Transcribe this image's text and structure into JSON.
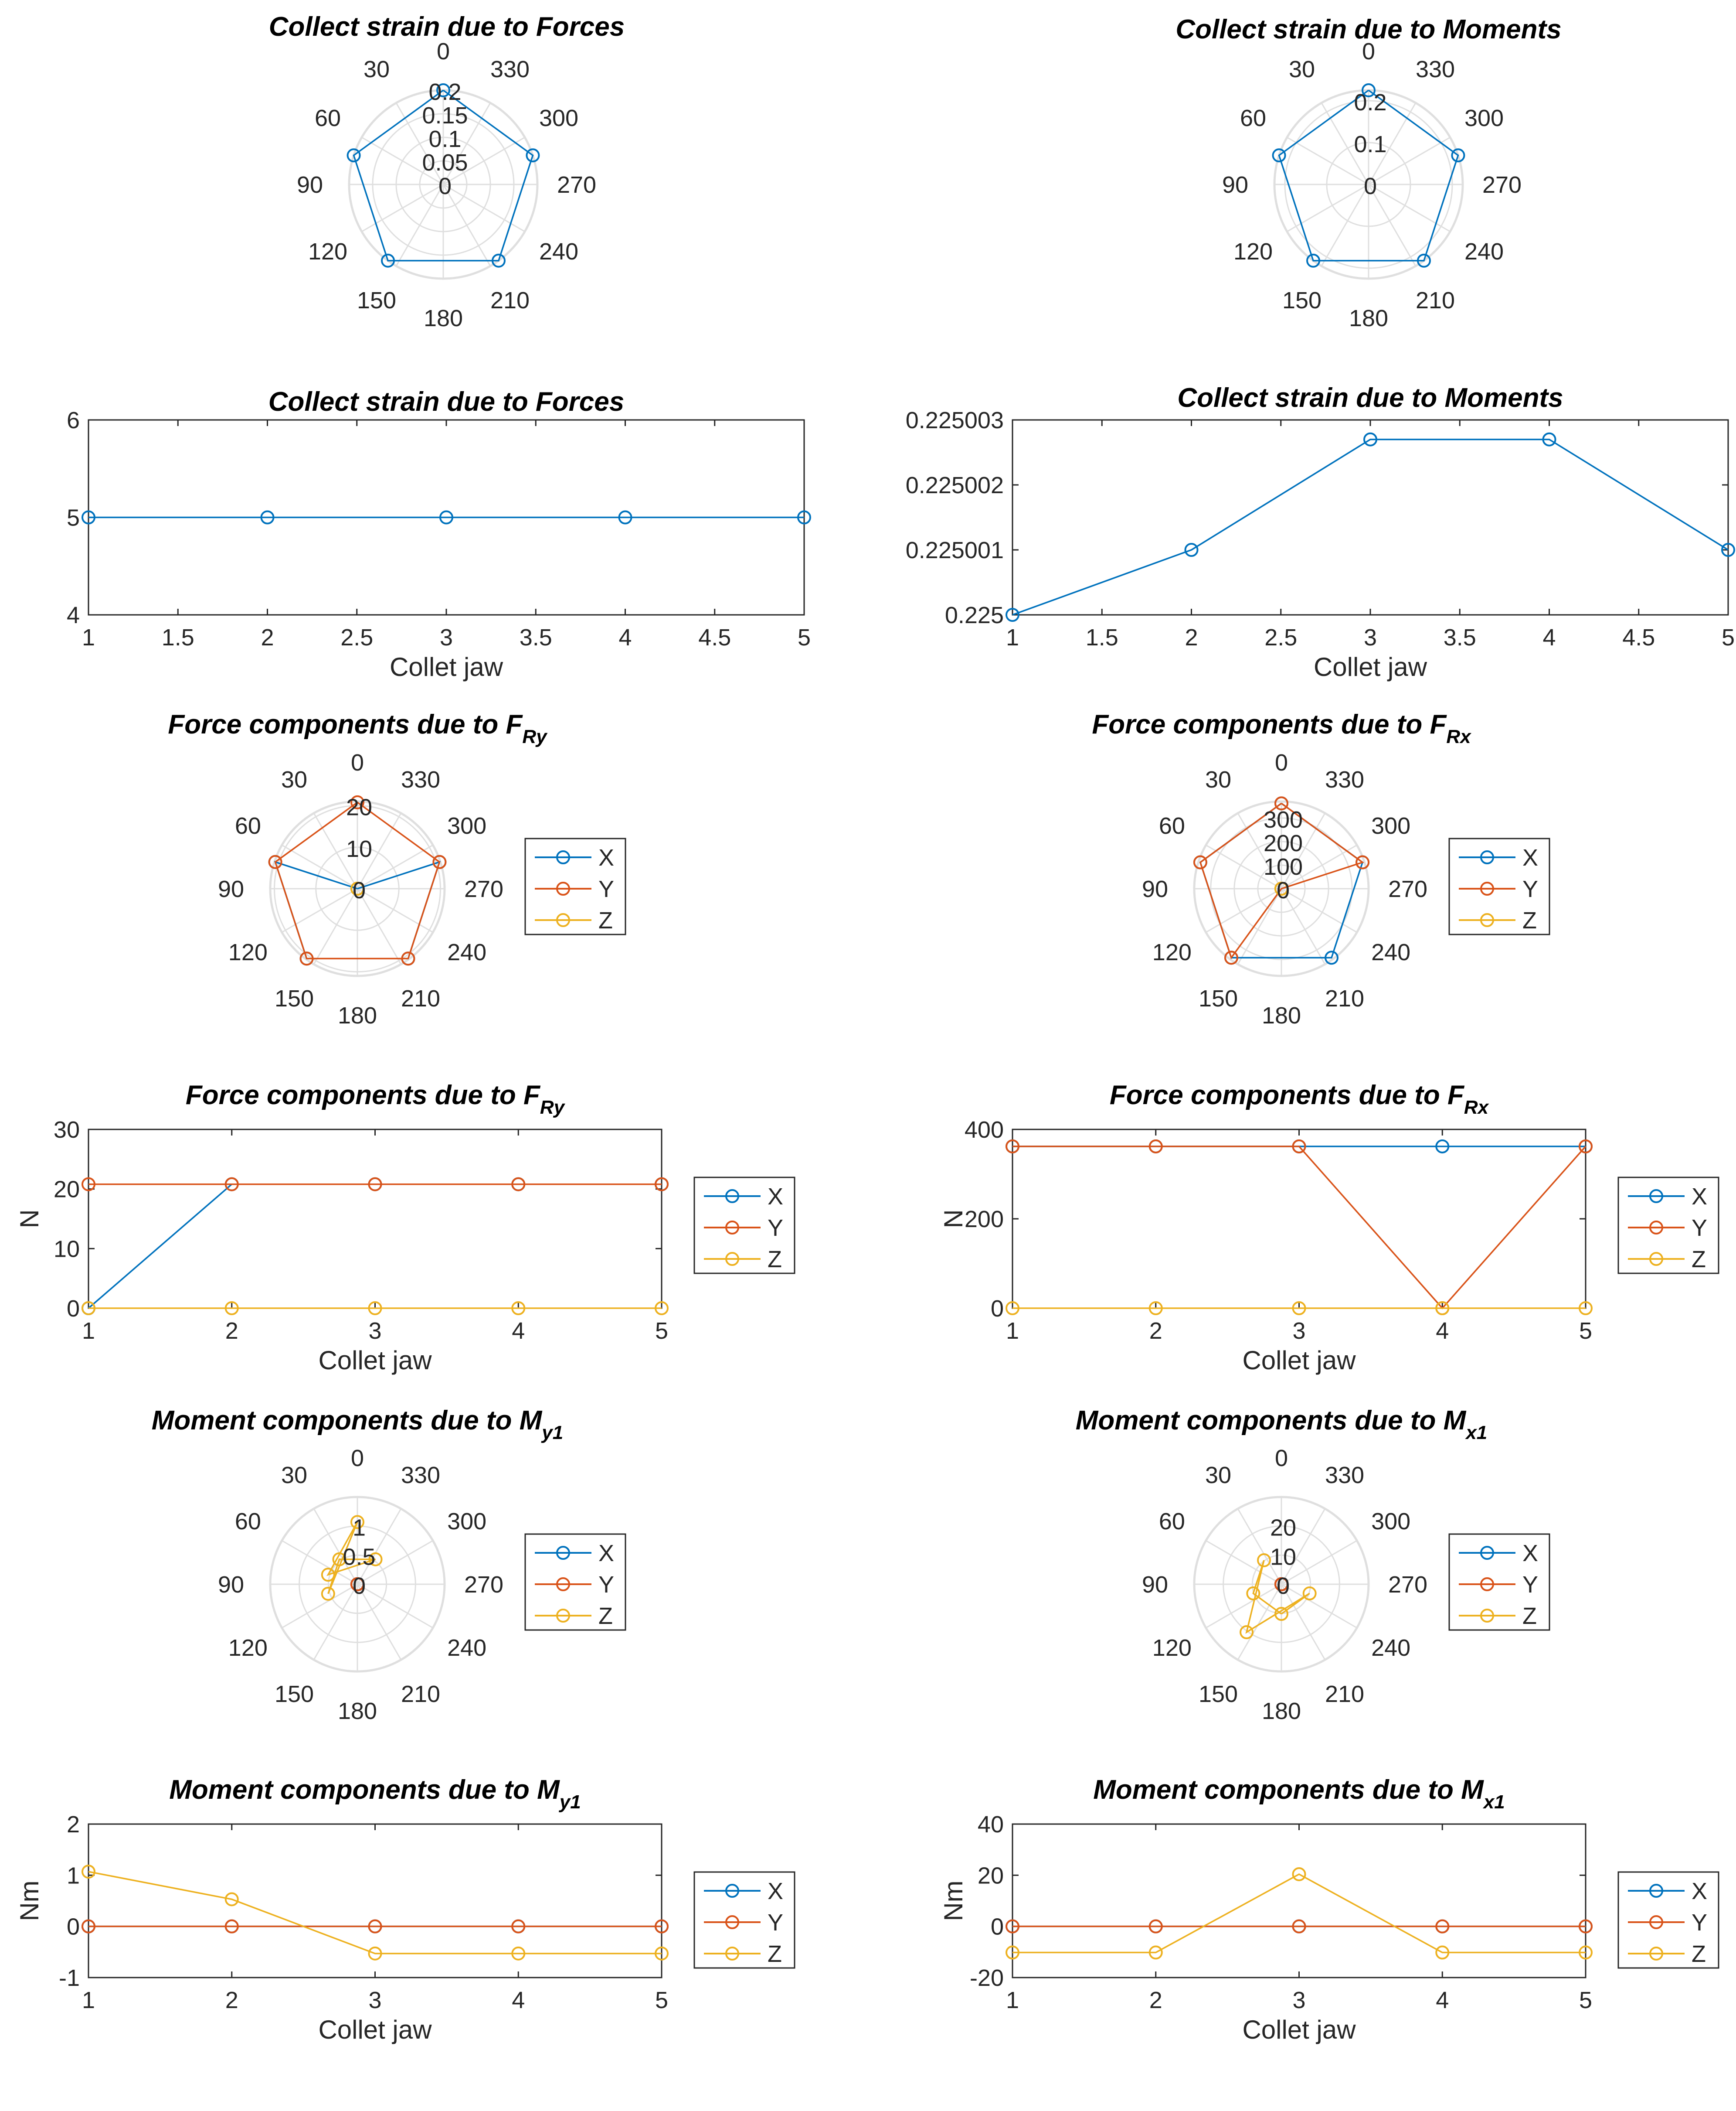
{
  "colors": {
    "X": "#0072BD",
    "Y": "#D95319",
    "Z": "#EDB120",
    "axis": "#262626",
    "grid": "#DFDFDF"
  },
  "legend_labels": [
    "X",
    "Y",
    "Z"
  ],
  "polar_angle_ticks": [
    "0",
    "30",
    "60",
    "90",
    "120",
    "150",
    "180",
    "210",
    "240",
    "270",
    "300",
    "330"
  ],
  "chart_data": [
    {
      "id": "p1",
      "type": "polar",
      "title": "Collect strain due to Forces",
      "r_ticks": [
        0,
        0.05,
        0.1,
        0.15,
        0.2
      ],
      "r_labels": [
        "0",
        "0.05",
        "0.1",
        "0.15",
        "0.2"
      ],
      "r_max": 0.2,
      "angles": [
        0,
        72,
        144,
        216,
        288
      ],
      "series": [
        {
          "name": "strain",
          "color": "X",
          "values": [
            0.2,
            0.2,
            0.2,
            0.2,
            0.2
          ]
        }
      ],
      "legend": false
    },
    {
      "id": "p2",
      "type": "polar",
      "title": "Collect strain due to Moments",
      "r_ticks": [
        0,
        0.1,
        0.2
      ],
      "r_labels": [
        "0",
        "0.1",
        "0.2"
      ],
      "r_max": 0.225,
      "angles": [
        0,
        72,
        144,
        216,
        288
      ],
      "series": [
        {
          "name": "strain",
          "color": "X",
          "values": [
            0.225,
            0.225001,
            0.2250027,
            0.2250027,
            0.225001
          ]
        }
      ],
      "legend": false
    },
    {
      "id": "c1",
      "type": "line",
      "title": "Collect strain due to Forces",
      "x": [
        1,
        2,
        3,
        4,
        5
      ],
      "xlim": [
        1,
        5
      ],
      "x_ticks": [
        1,
        1.5,
        2,
        2.5,
        3,
        3.5,
        4,
        4.5,
        5
      ],
      "x_labels": [
        "1",
        "1.5",
        "2",
        "2.5",
        "3",
        "3.5",
        "4",
        "4.5",
        "5"
      ],
      "ylim": [
        4,
        6
      ],
      "y_ticks": [
        4,
        5,
        6
      ],
      "y_labels": [
        "4",
        "5",
        "6"
      ],
      "xlabel": "Collet jaw",
      "ylabel": "",
      "series": [
        {
          "name": "strain",
          "color": "X",
          "values": [
            5,
            5,
            5,
            5,
            5
          ]
        }
      ],
      "legend": false
    },
    {
      "id": "c2",
      "type": "line",
      "title": "Collect strain due to Moments",
      "x": [
        1,
        2,
        3,
        4,
        5
      ],
      "xlim": [
        1,
        5
      ],
      "x_ticks": [
        1,
        1.5,
        2,
        2.5,
        3,
        3.5,
        4,
        4.5,
        5
      ],
      "x_labels": [
        "1",
        "1.5",
        "2",
        "2.5",
        "3",
        "3.5",
        "4",
        "4.5",
        "5"
      ],
      "ylim": [
        0.225,
        0.225003
      ],
      "y_ticks": [
        0.225,
        0.225001,
        0.225002,
        0.225003
      ],
      "y_labels": [
        "0.225",
        "0.225001",
        "0.225002",
        "0.225003"
      ],
      "xlabel": "Collet jaw",
      "ylabel": "",
      "series": [
        {
          "name": "strain",
          "color": "X",
          "values": [
            0.225,
            0.225001,
            0.2250027,
            0.2250027,
            0.225001
          ]
        }
      ],
      "legend": false
    },
    {
      "id": "p3",
      "type": "polar",
      "title": "Force components due to F",
      "title_sub": "Ry",
      "r_ticks": [
        0,
        10,
        20
      ],
      "r_labels": [
        "0",
        "10",
        "20"
      ],
      "r_max": 21,
      "angles": [
        0,
        72,
        144,
        216,
        288
      ],
      "series": [
        {
          "name": "X",
          "color": "X",
          "values": [
            0,
            20.8,
            20.8,
            20.8,
            20.8
          ]
        },
        {
          "name": "Y",
          "color": "Y",
          "values": [
            20.8,
            20.8,
            20.8,
            20.8,
            20.8
          ]
        },
        {
          "name": "Z",
          "color": "Z",
          "values": [
            0,
            0,
            0,
            0,
            0
          ]
        }
      ],
      "legend": true
    },
    {
      "id": "p4",
      "type": "polar",
      "title": "Force components due to F",
      "title_sub": "Rx",
      "r_ticks": [
        0,
        100,
        200,
        300
      ],
      "r_labels": [
        "0",
        "100",
        "200",
        "300"
      ],
      "r_max": 370,
      "angles": [
        0,
        72,
        144,
        216,
        288
      ],
      "series": [
        {
          "name": "X",
          "color": "X",
          "values": [
            362,
            362,
            362,
            362,
            362
          ]
        },
        {
          "name": "Y",
          "color": "Y",
          "values": [
            362,
            362,
            362,
            0,
            362
          ]
        },
        {
          "name": "Z",
          "color": "Z",
          "values": [
            0,
            0,
            0,
            0,
            0
          ]
        }
      ],
      "legend": true
    },
    {
      "id": "c3",
      "type": "line",
      "title": "Force components due to F",
      "title_sub": "Ry",
      "x": [
        1,
        2,
        3,
        4,
        5
      ],
      "xlim": [
        1,
        5
      ],
      "x_ticks": [
        1,
        2,
        3,
        4,
        5
      ],
      "x_labels": [
        "1",
        "2",
        "3",
        "4",
        "5"
      ],
      "ylim": [
        0,
        30
      ],
      "y_ticks": [
        0,
        10,
        20,
        30
      ],
      "y_labels": [
        "0",
        "10",
        "20",
        "30"
      ],
      "xlabel": "Collet jaw",
      "ylabel": "N",
      "series": [
        {
          "name": "X",
          "color": "X",
          "values": [
            0,
            20.8,
            20.8,
            20.8,
            20.8
          ]
        },
        {
          "name": "Y",
          "color": "Y",
          "values": [
            20.8,
            20.8,
            20.8,
            20.8,
            20.8
          ]
        },
        {
          "name": "Z",
          "color": "Z",
          "values": [
            0,
            0,
            0,
            0,
            0
          ]
        }
      ],
      "legend": true
    },
    {
      "id": "c4",
      "type": "line",
      "title": "Force components due to F",
      "title_sub": "Rx",
      "x": [
        1,
        2,
        3,
        4,
        5
      ],
      "xlim": [
        1,
        5
      ],
      "x_ticks": [
        1,
        2,
        3,
        4,
        5
      ],
      "x_labels": [
        "1",
        "2",
        "3",
        "4",
        "5"
      ],
      "ylim": [
        0,
        400
      ],
      "y_ticks": [
        0,
        200,
        400
      ],
      "y_labels": [
        "0",
        "200",
        "400"
      ],
      "xlabel": "Collet jaw",
      "ylabel": "N",
      "series": [
        {
          "name": "X",
          "color": "X",
          "values": [
            362,
            362,
            362,
            362,
            362
          ]
        },
        {
          "name": "Y",
          "color": "Y",
          "values": [
            362,
            362,
            362,
            0,
            362
          ]
        },
        {
          "name": "Z",
          "color": "Z",
          "values": [
            0,
            0,
            0,
            0,
            0
          ]
        }
      ],
      "legend": true
    },
    {
      "id": "p5",
      "type": "polar",
      "title": "Moment components due to M",
      "title_sub": "y1",
      "r_ticks": [
        0,
        0.5,
        1
      ],
      "r_labels": [
        "0",
        "0.5",
        "1"
      ],
      "r_max": 1.5,
      "angles": [
        0,
        72,
        144,
        216,
        288
      ],
      "series": [
        {
          "name": "X",
          "color": "X",
          "values": [
            0,
            0,
            0,
            0,
            0
          ]
        },
        {
          "name": "Y",
          "color": "Y",
          "values": [
            0,
            0,
            0,
            0,
            0
          ]
        },
        {
          "name": "Z",
          "color": "Z",
          "values": [
            1.07,
            0.53,
            -0.53,
            -0.53,
            -0.53
          ]
        }
      ],
      "legend": true
    },
    {
      "id": "p6",
      "type": "polar",
      "title": "Moment components due to M",
      "title_sub": "x1",
      "r_ticks": [
        0,
        10,
        20
      ],
      "r_labels": [
        "0",
        "10",
        "20"
      ],
      "r_max": 30,
      "angles": [
        0,
        72,
        144,
        216,
        288
      ],
      "series": [
        {
          "name": "X",
          "color": "X",
          "values": [
            0,
            0,
            0,
            0,
            0
          ]
        },
        {
          "name": "Y",
          "color": "Y",
          "values": [
            0,
            0,
            0,
            0,
            0
          ]
        },
        {
          "name": "Z",
          "color": "Z",
          "values": [
            -10.2,
            -10.2,
            20.4,
            -10.2,
            -10.2
          ]
        }
      ],
      "legend": true
    },
    {
      "id": "c5",
      "type": "line",
      "title": "Moment components due to M",
      "title_sub": "y1",
      "x": [
        1,
        2,
        3,
        4,
        5
      ],
      "xlim": [
        1,
        5
      ],
      "x_ticks": [
        1,
        2,
        3,
        4,
        5
      ],
      "x_labels": [
        "1",
        "2",
        "3",
        "4",
        "5"
      ],
      "ylim": [
        -1,
        2
      ],
      "y_ticks": [
        -1,
        0,
        1,
        2
      ],
      "y_labels": [
        "-1",
        "0",
        "1",
        "2"
      ],
      "xlabel": "Collet jaw",
      "ylabel": "Nm",
      "series": [
        {
          "name": "X",
          "color": "X",
          "values": [
            0,
            0,
            0,
            0,
            0
          ]
        },
        {
          "name": "Y",
          "color": "Y",
          "values": [
            0,
            0,
            0,
            0,
            0
          ]
        },
        {
          "name": "Z",
          "color": "Z",
          "values": [
            1.07,
            0.53,
            -0.53,
            -0.53,
            -0.53
          ]
        }
      ],
      "legend": true
    },
    {
      "id": "c6",
      "type": "line",
      "title": "Moment components due to M",
      "title_sub": "x1",
      "x": [
        1,
        2,
        3,
        4,
        5
      ],
      "xlim": [
        1,
        5
      ],
      "x_ticks": [
        1,
        2,
        3,
        4,
        5
      ],
      "x_labels": [
        "1",
        "2",
        "3",
        "4",
        "5"
      ],
      "ylim": [
        -20,
        40
      ],
      "y_ticks": [
        -20,
        0,
        20,
        40
      ],
      "y_labels": [
        "-20",
        "0",
        "20",
        "40"
      ],
      "xlabel": "Collet jaw",
      "ylabel": "Nm",
      "series": [
        {
          "name": "X",
          "color": "X",
          "values": [
            0,
            0,
            0,
            0,
            0
          ]
        },
        {
          "name": "Y",
          "color": "Y",
          "values": [
            0,
            0,
            0,
            0,
            0
          ]
        },
        {
          "name": "Z",
          "color": "Z",
          "values": [
            -10.2,
            -10.2,
            20.4,
            -10.2,
            -10.2
          ]
        }
      ],
      "legend": true
    }
  ]
}
